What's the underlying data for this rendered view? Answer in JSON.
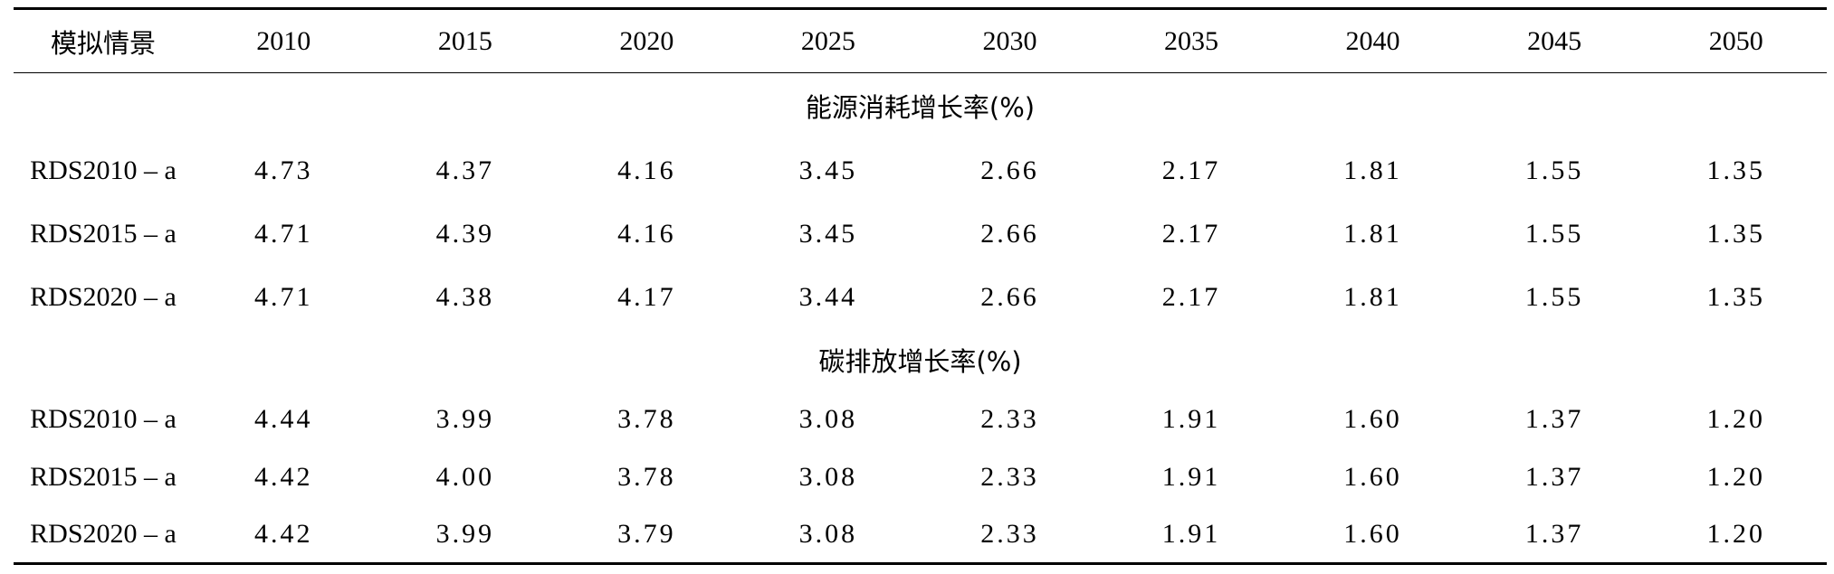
{
  "table": {
    "header": {
      "label": "模拟情景",
      "years": [
        "2010",
        "2015",
        "2020",
        "2025",
        "2030",
        "2035",
        "2040",
        "2045",
        "2050"
      ]
    },
    "sections": [
      {
        "title": "能源消耗增长率(%)",
        "rows": [
          {
            "scenario": "RDS2010 – a",
            "values": [
              "4.73",
              "4.37",
              "4.16",
              "3.45",
              "2.66",
              "2.17",
              "1.81",
              "1.55",
              "1.35"
            ]
          },
          {
            "scenario": "RDS2015 – a",
            "values": [
              "4.71",
              "4.39",
              "4.16",
              "3.45",
              "2.66",
              "2.17",
              "1.81",
              "1.55",
              "1.35"
            ]
          },
          {
            "scenario": "RDS2020 – a",
            "values": [
              "4.71",
              "4.38",
              "4.17",
              "3.44",
              "2.66",
              "2.17",
              "1.81",
              "1.55",
              "1.35"
            ]
          }
        ]
      },
      {
        "title": "碳排放增长率(%)",
        "rows": [
          {
            "scenario": "RDS2010 – a",
            "values": [
              "4.44",
              "3.99",
              "3.78",
              "3.08",
              "2.33",
              "1.91",
              "1.60",
              "1.37",
              "1.20"
            ]
          },
          {
            "scenario": "RDS2015 – a",
            "values": [
              "4.42",
              "4.00",
              "3.78",
              "3.08",
              "2.33",
              "1.91",
              "1.60",
              "1.37",
              "1.20"
            ]
          },
          {
            "scenario": "RDS2020 – a",
            "values": [
              "4.42",
              "3.99",
              "3.79",
              "3.08",
              "2.33",
              "1.91",
              "1.60",
              "1.37",
              "1.20"
            ]
          }
        ]
      }
    ]
  }
}
